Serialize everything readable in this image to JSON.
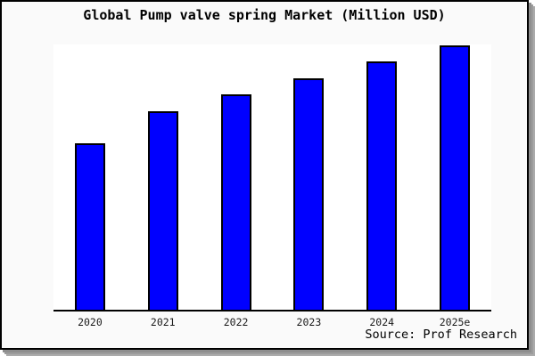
{
  "frame": {
    "background": "#fafafa",
    "border_color": "#000000",
    "shadow_colors": [
      "#8e8e8e",
      "#9c9c9c",
      "#ababab"
    ]
  },
  "source_note": "Source: Prof Research",
  "chart_data": {
    "type": "bar",
    "title": "Global Pump valve spring Market (Million USD)",
    "categories": [
      "2020",
      "2021",
      "2022",
      "2023",
      "2024",
      "2025e"
    ],
    "values": [
      62.7,
      75.0,
      81.3,
      87.3,
      93.7,
      99.7
    ],
    "note": "no y-axis ticks or value labels shown; values are estimated relative bar heights in percent of plot height",
    "xlabel": "",
    "ylabel": "",
    "ylim": [
      0,
      100
    ],
    "grid": false,
    "legend": false,
    "bar_color": "#0000FF",
    "bar_border_color": "#000000",
    "axis_color": "#000000",
    "plot_background": "#ffffff"
  }
}
